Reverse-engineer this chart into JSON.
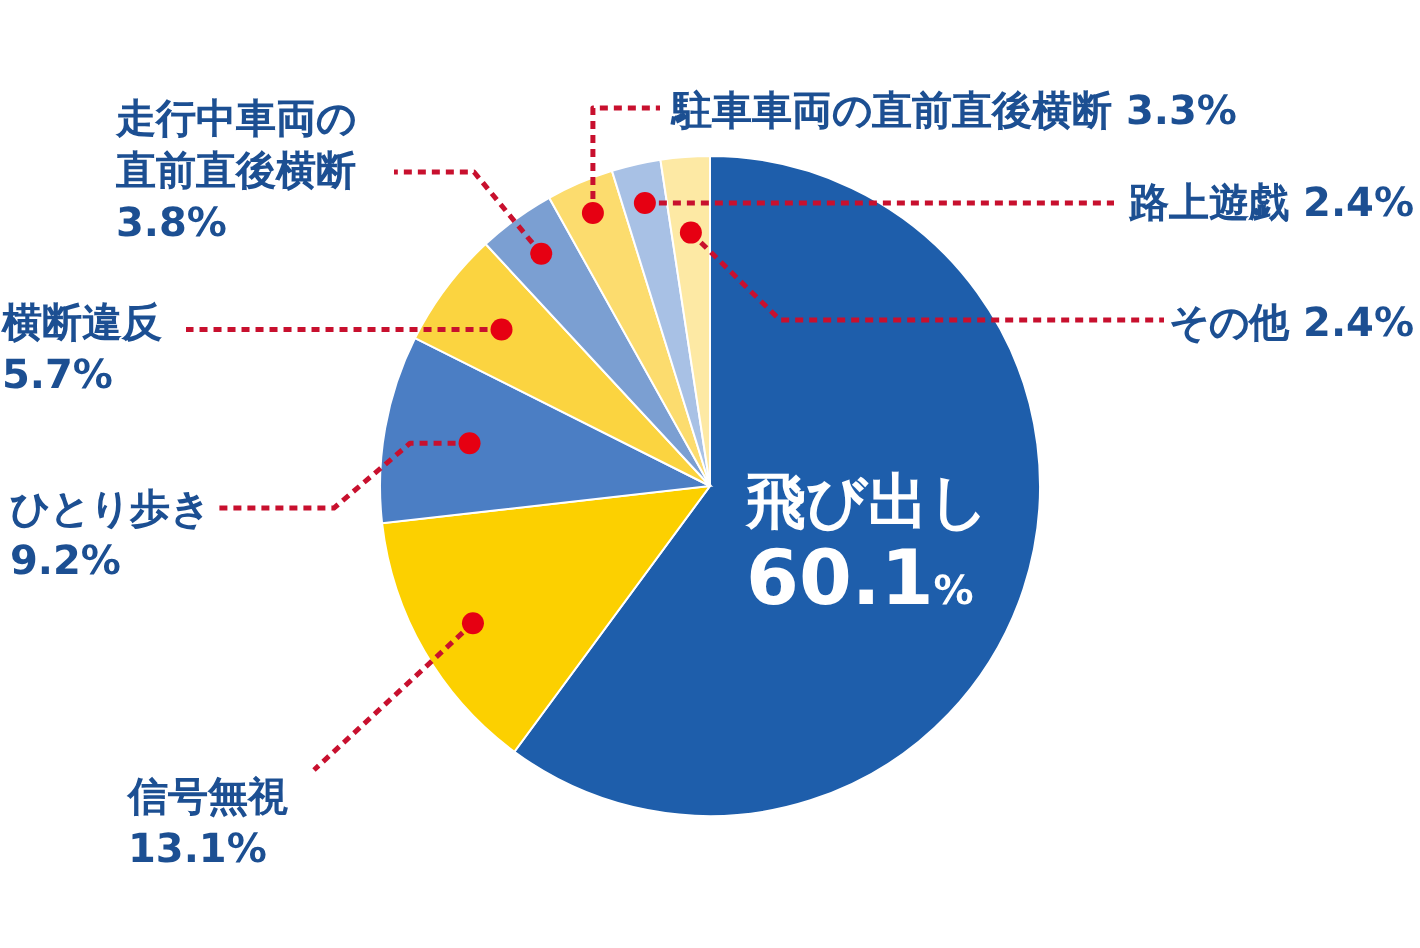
{
  "chart_data": {
    "type": "pie",
    "categories": [
      "飛び出し",
      "信号無視",
      "ひとり歩き",
      "横断違反",
      "走行中車両の直前直後横断",
      "駐車車両の直前直後横断",
      "路上遊戯",
      "その他"
    ],
    "values": [
      60.1,
      13.1,
      9.2,
      5.7,
      3.8,
      3.3,
      2.4,
      2.4
    ],
    "colors": [
      "#1e5eab",
      "#fcd000",
      "#4b7ec4",
      "#fbd440",
      "#7b9fd2",
      "#fcdc6e",
      "#a8c1e5",
      "#fde9a4"
    ],
    "value_labels": [
      "60.1%",
      "13.1%",
      "9.2%",
      "5.7%",
      "3.8%",
      "3.3%",
      "2.4%",
      "2.4%"
    ]
  }
}
